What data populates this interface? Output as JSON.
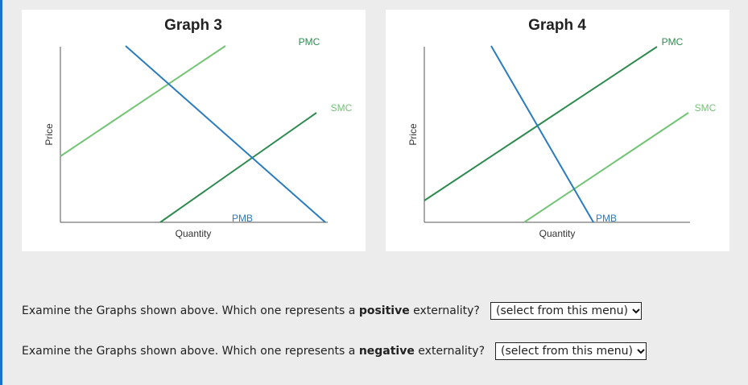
{
  "graphs": [
    {
      "title": "Graph 3",
      "ylabel": "Price",
      "xlabel": "Quantity",
      "curves": {
        "pmc": "PMC",
        "smc": "SMC",
        "pmb": "PMB"
      }
    },
    {
      "title": "Graph 4",
      "ylabel": "Price",
      "xlabel": "Quantity",
      "curves": {
        "pmc": "PMC",
        "smc": "SMC",
        "pmb": "PMB"
      }
    }
  ],
  "colors": {
    "pmb": "#2a7bbf",
    "pmc": "#2e8b4f",
    "smc": "#74c476",
    "accent": "#1a73c9"
  },
  "questions": {
    "positive": {
      "prefix": "Examine the Graphs shown above. Which one represents a ",
      "bold": "positive",
      "suffix": " externality?",
      "select_value": "(select from this menu)"
    },
    "negative": {
      "prefix": "Examine the Graphs shown above. Which one represents a ",
      "bold": "negative",
      "suffix": " externality?",
      "select_value": "(select from this menu)"
    }
  },
  "icons": {
    "dropdown": "chevron-down-icon"
  }
}
